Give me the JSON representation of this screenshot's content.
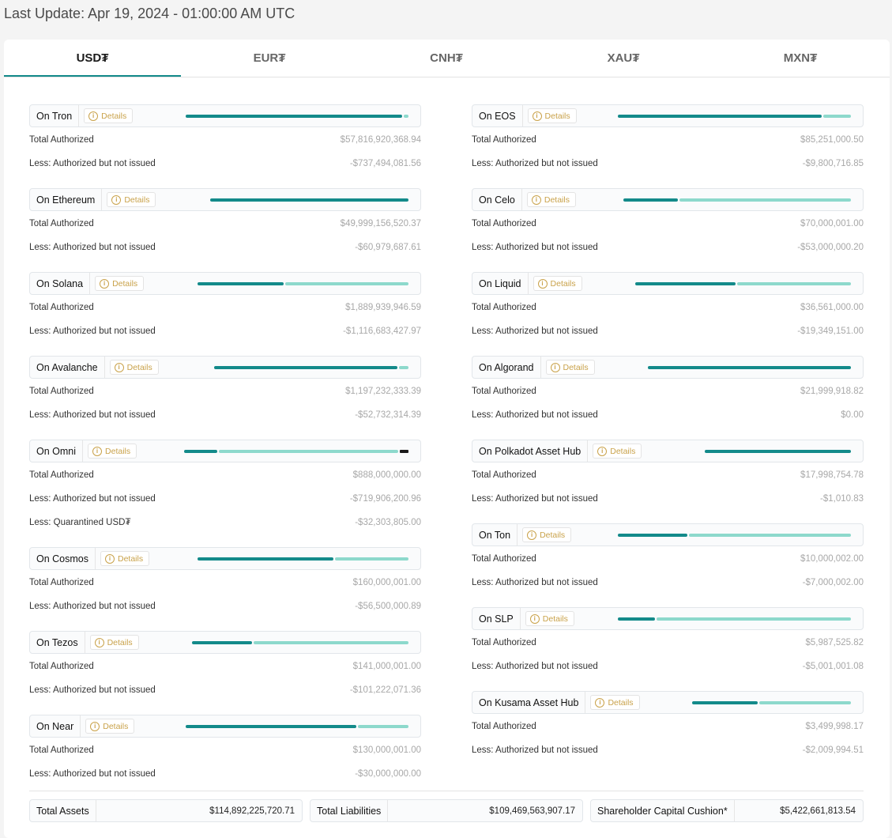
{
  "last_update": "Last Update: Apr 19, 2024 - 01:00:00 AM UTC",
  "tabs": [
    "USD₮",
    "EUR₮",
    "CNH₮",
    "XAU₮",
    "MXN₮"
  ],
  "active_tab": "USD₮",
  "details_label": "Details",
  "labels": {
    "total_authorized": "Total Authorized",
    "less_not_issued": "Less: Authorized but not issued",
    "less_quarantined": "Less: Quarantined USD₮"
  },
  "left_chains": [
    {
      "name": "On Tron",
      "total": "$57,816,920,368.94",
      "not_issued": "-$737,494,081.56",
      "bar": [
        0.98,
        0.02,
        0
      ]
    },
    {
      "name": "On Ethereum",
      "total": "$49,999,156,520.37",
      "not_issued": "-$60,979,687.61",
      "bar": [
        1.0,
        0,
        0
      ]
    },
    {
      "name": "On Solana",
      "total": "$1,889,939,946.59",
      "not_issued": "-$1,116,683,427.97",
      "bar": [
        0.41,
        0.59,
        0
      ]
    },
    {
      "name": "On Avalanche",
      "total": "$1,197,232,333.39",
      "not_issued": "-$52,732,314.39",
      "bar": [
        0.95,
        0.05,
        0
      ]
    },
    {
      "name": "On Omni",
      "total": "$888,000,000.00",
      "not_issued": "-$719,906,200.96",
      "quarantined": "-$32,303,805.00",
      "bar": [
        0.15,
        0.81,
        0.04
      ]
    },
    {
      "name": "On Cosmos",
      "total": "$160,000,001.00",
      "not_issued": "-$56,500,000.89",
      "bar": [
        0.65,
        0.35,
        0
      ]
    },
    {
      "name": "On Tezos",
      "total": "$141,000,001.00",
      "not_issued": "-$101,222,071.36",
      "bar": [
        0.28,
        0.72,
        0
      ]
    },
    {
      "name": "On Near",
      "total": "$130,000,001.00",
      "not_issued": "-$30,000,000.00",
      "bar": [
        0.77,
        0.23,
        0
      ]
    }
  ],
  "right_chains": [
    {
      "name": "On EOS",
      "total": "$85,251,000.50",
      "not_issued": "-$9,800,716.85",
      "bar": [
        0.88,
        0.12,
        0
      ]
    },
    {
      "name": "On Celo",
      "total": "$70,000,001.00",
      "not_issued": "-$53,000,000.20",
      "bar": [
        0.24,
        0.76,
        0
      ]
    },
    {
      "name": "On Liquid",
      "total": "$36,561,000.00",
      "not_issued": "-$19,349,151.00",
      "bar": [
        0.47,
        0.53,
        0
      ]
    },
    {
      "name": "On Algorand",
      "total": "$21,999,918.82",
      "not_issued": "$0.00",
      "bar": [
        1.0,
        0,
        0
      ]
    },
    {
      "name": "On Polkadot Asset Hub",
      "total": "$17,998,754.78",
      "not_issued": "-$1,010.83",
      "bar": [
        1.0,
        0,
        0
      ]
    },
    {
      "name": "On Ton",
      "total": "$10,000,002.00",
      "not_issued": "-$7,000,002.00",
      "bar": [
        0.3,
        0.7,
        0
      ]
    },
    {
      "name": "On SLP",
      "total": "$5,987,525.82",
      "not_issued": "-$5,001,001.08",
      "bar": [
        0.16,
        0.84,
        0
      ]
    },
    {
      "name": "On Kusama Asset Hub",
      "total": "$3,499,998.17",
      "not_issued": "-$2,009,994.51",
      "bar": [
        0.42,
        0.58,
        0
      ]
    }
  ],
  "totals": [
    {
      "label": "Total Assets",
      "value": "$114,892,225,720.71"
    },
    {
      "label": "Total Liabilities",
      "value": "$109,469,563,907.17"
    },
    {
      "label": "Shareholder Capital Cushion*",
      "value": "$5,422,661,813.54"
    }
  ],
  "colors": {
    "bar_dark": "#138a8a",
    "bar_light": "#8dd9cc",
    "bar_black": "#1a1a1a",
    "details": "#c9a24a"
  }
}
